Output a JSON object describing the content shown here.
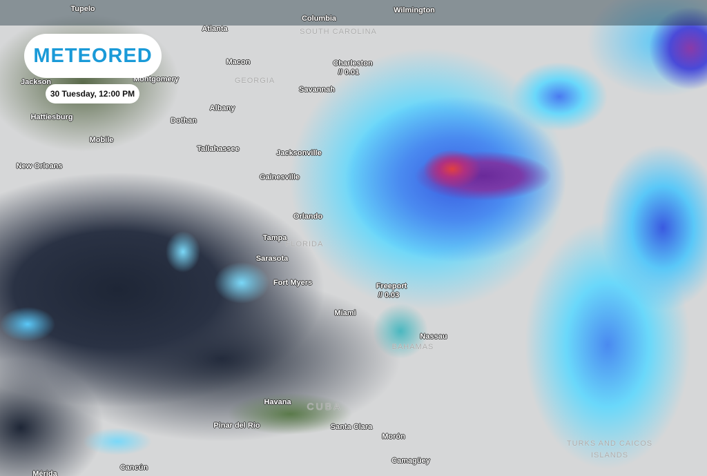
{
  "brand": {
    "logo_text": "METEORED"
  },
  "timestamp": "30 Tuesday, 12:00 PM",
  "colors": {
    "brand": "#1a9ad8",
    "rain_light": "#6ad8fa",
    "rain_moderate": "#3a5ae0",
    "rain_heavy": "#7a3aa8",
    "rain_extreme": "#e04040"
  },
  "cities": [
    "Tupelo",
    "Columbia",
    "Wilmington",
    "Atlanta",
    "Macon",
    "Charleston",
    "Savannah",
    "Jackson",
    "Montgomery",
    "Albany",
    "Hattiesburg",
    "Dothan",
    "Mobile",
    "Tallahassee",
    "Jacksonville",
    "New Orleans",
    "Gainesville",
    "Orlando",
    "Tampa",
    "Sarasota",
    "Fort Myers",
    "Freeport",
    "Miami",
    "Nassau",
    "Havana",
    "Pinar del Rio",
    "Santa Clara",
    "Morón",
    "Camagüey",
    "Cancún",
    "Mérida"
  ],
  "regions": [
    "SOUTH CAROLINA",
    "GEORGIA",
    "FLORIDA",
    "BAHAMAS",
    "CUBA",
    "TURKS AND CAICOS",
    "ISLANDS"
  ],
  "readings": {
    "charleston": "// 0.01",
    "freeport": "// 0.03"
  }
}
